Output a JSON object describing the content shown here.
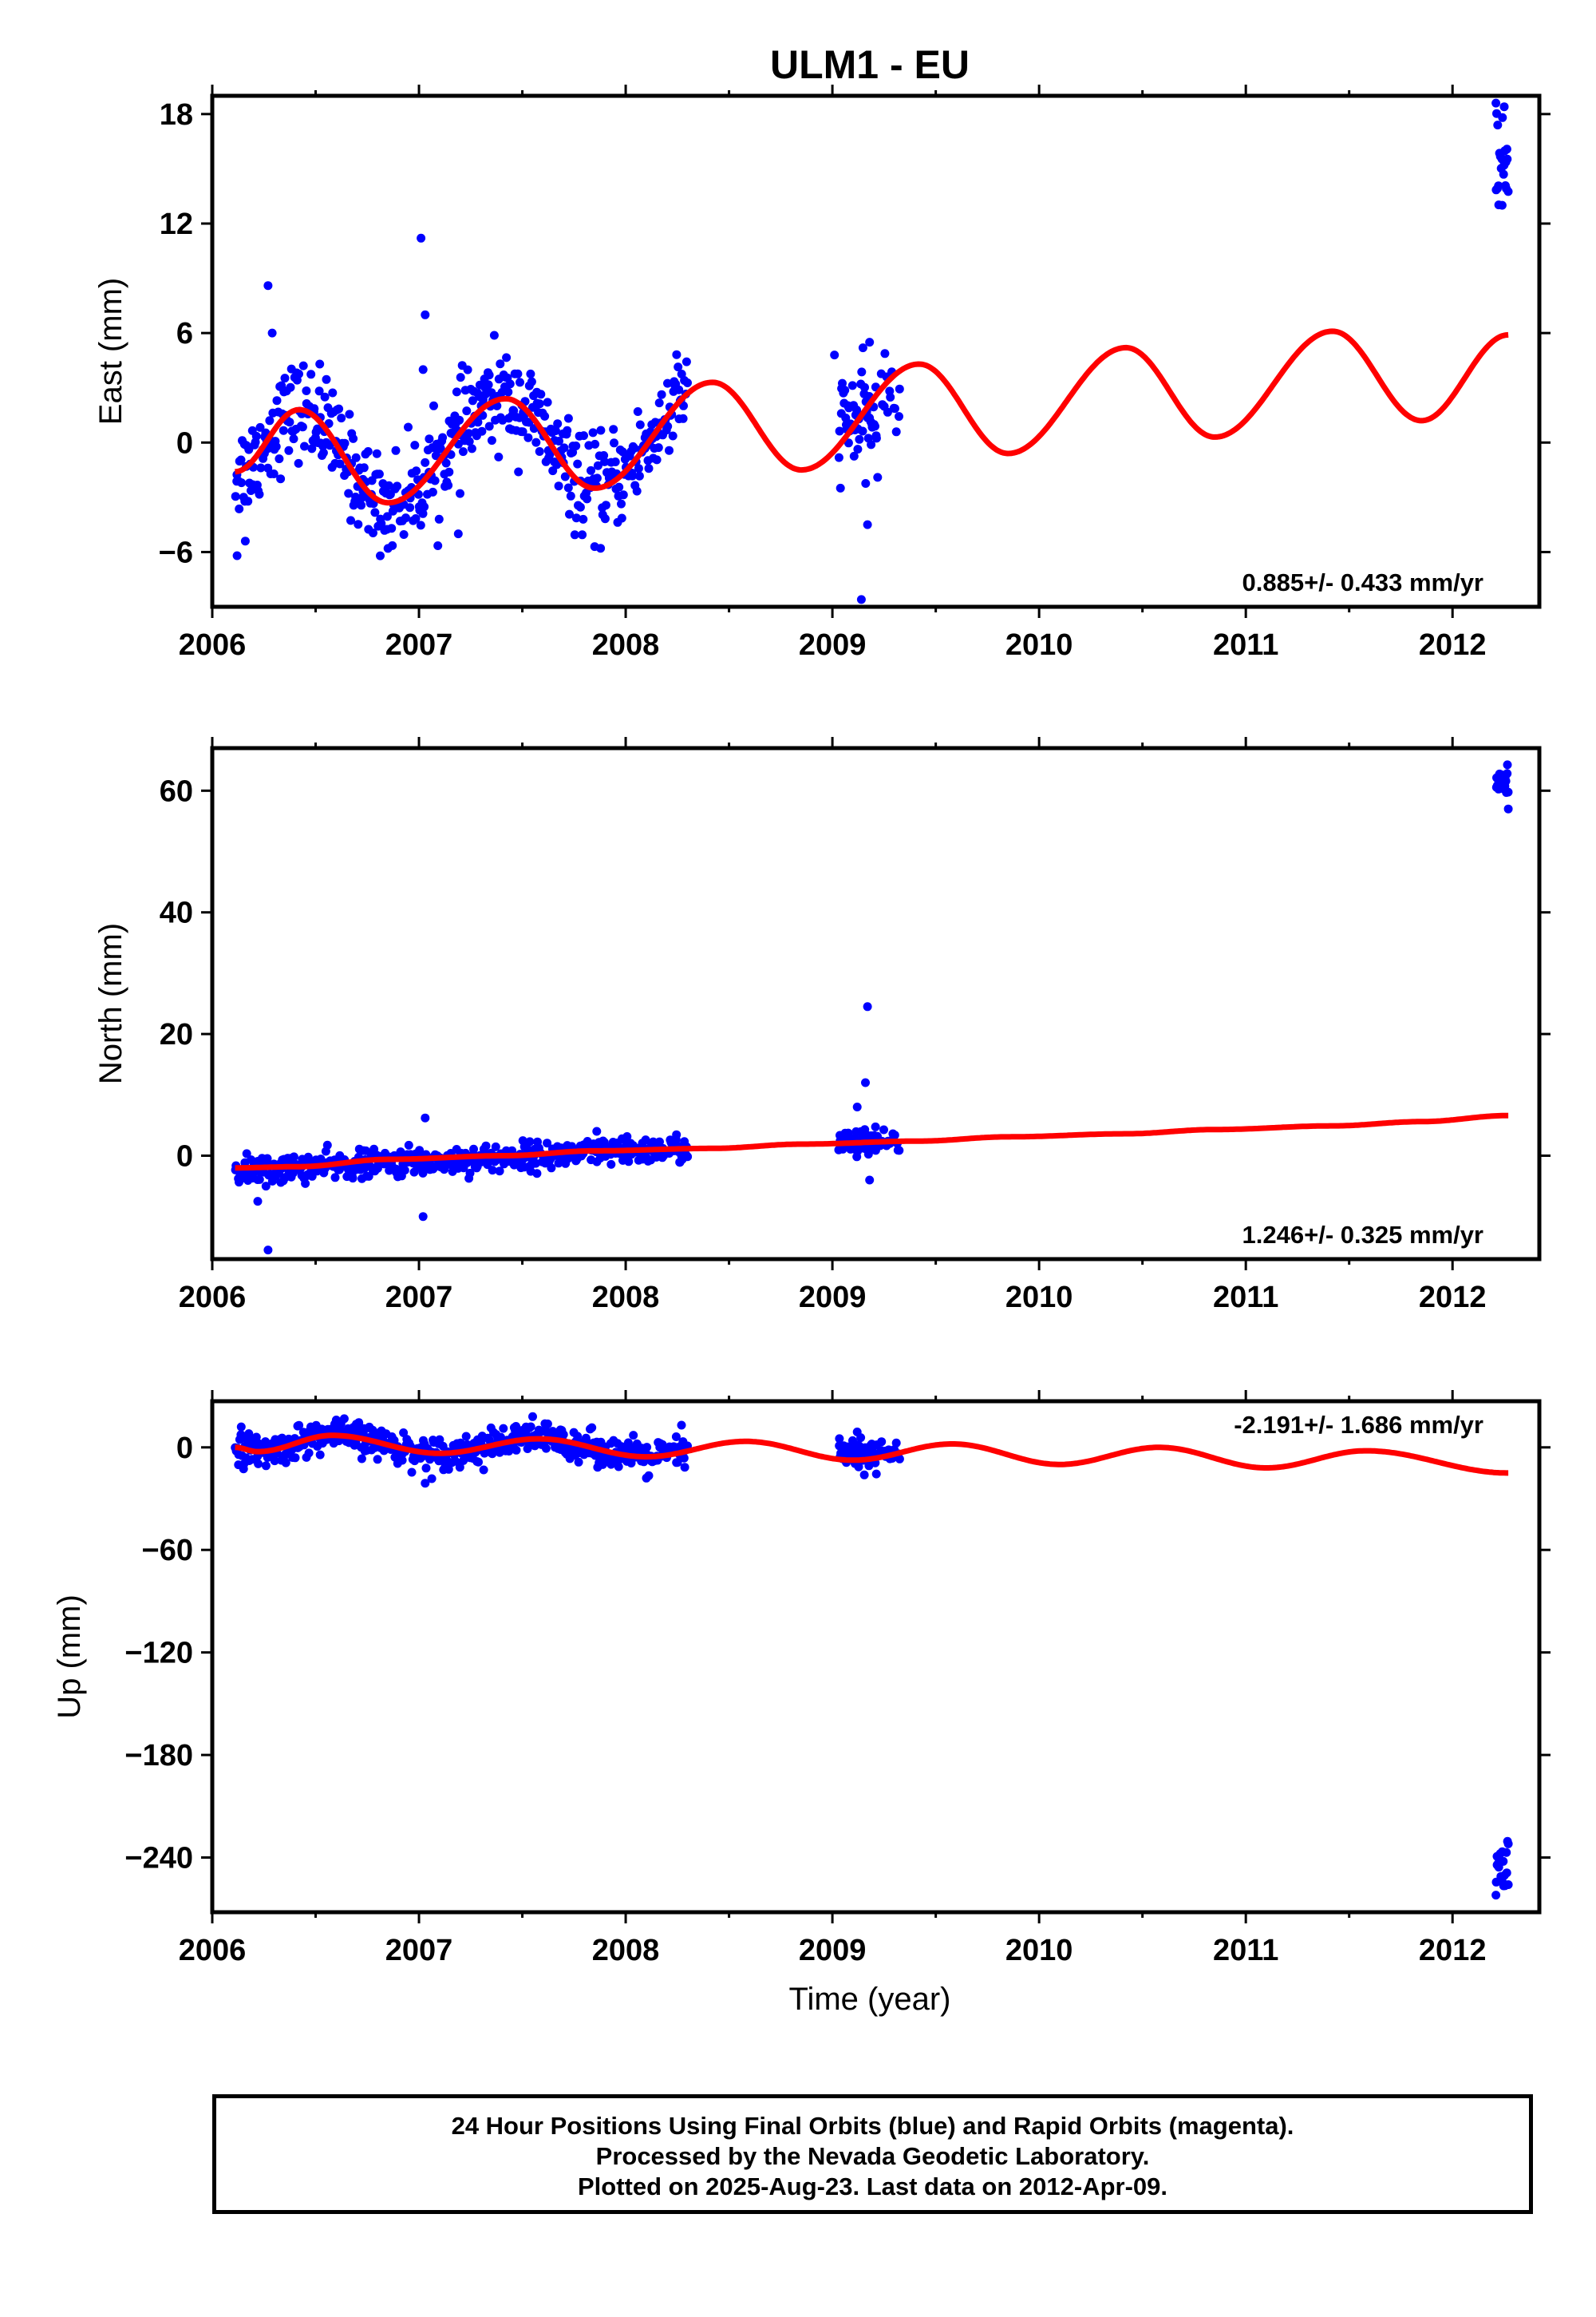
{
  "title": "ULM1 - EU",
  "xlabel": "Time (year)",
  "footer": {
    "line1": "24 Hour Positions Using Final Orbits (blue) and Rapid Orbits (magenta).",
    "line2": "Processed by the Nevada Geodetic Laboratory.",
    "line3": "Plotted on 2025-Aug-23. Last data on 2012-Apr-09."
  },
  "colors": {
    "points": "#0000ff",
    "fit": "#ff0000",
    "frame": "#000000"
  },
  "chart_data": [
    {
      "type": "scatter",
      "panel": "East",
      "ylabel": "East (mm)",
      "xlim": [
        2006.0,
        2012.42
      ],
      "ylim": [
        -9,
        19
      ],
      "xticks": [
        2006,
        2007,
        2008,
        2009,
        2010,
        2011,
        2012
      ],
      "yticks": [
        18,
        12,
        6,
        0,
        -6
      ],
      "ytick_labels": [
        "18",
        "12",
        "6",
        "0",
        "−6"
      ],
      "rate_label": "0.885+/- 0.433 mm/yr",
      "rate_position": "bottom-right",
      "series": [
        {
          "name": "",
          "kind": "points",
          "clusters": [
            {
              "x": [
                2006.11,
                2008.3
              ],
              "model": "seasonal",
              "scatter": 1.3,
              "n": 520
            },
            {
              "x": [
                2009.03,
                2009.22
              ],
              "model": "flat",
              "level": 1.2,
              "scatter": 1.3,
              "n": 55
            },
            {
              "x": [
                2009.23,
                2009.33
              ],
              "model": "flat",
              "level": 2.5,
              "scatter": 1.0,
              "n": 14
            },
            {
              "x": [
                2012.21,
                2012.27
              ],
              "model": "flat",
              "level": 15.5,
              "scatter": 1.6,
              "n": 22
            }
          ],
          "outliers": [
            [
              2006.12,
              -6.2
            ],
            [
              2006.16,
              -5.4
            ],
            [
              2006.27,
              8.6
            ],
            [
              2006.29,
              6.0
            ],
            [
              2006.52,
              4.3
            ],
            [
              2006.85,
              -5.8
            ],
            [
              2007.01,
              11.2
            ],
            [
              2007.03,
              7.0
            ],
            [
              2007.02,
              4.0
            ],
            [
              2007.19,
              -5.0
            ],
            [
              2007.34,
              3.7
            ],
            [
              2007.85,
              -5.7
            ],
            [
              2009.01,
              4.8
            ],
            [
              2009.14,
              -8.6
            ],
            [
              2009.18,
              5.5
            ],
            [
              2009.17,
              -4.5
            ],
            [
              2012.21,
              18.6
            ],
            [
              2012.25,
              18.4
            ],
            [
              2012.24,
              13.0
            ]
          ]
        },
        {
          "name": "",
          "kind": "fit",
          "model": "seasonal-trend",
          "x_range": [
            2006.11,
            2012.27
          ],
          "rate": 0.885,
          "anchor": [
            [
              2006.11,
              -1.6
            ],
            [
              2006.42,
              1.8
            ],
            [
              2006.85,
              -3.3
            ],
            [
              2007.42,
              2.4
            ],
            [
              2007.85,
              -2.5
            ],
            [
              2008.42,
              3.3
            ],
            [
              2008.85,
              -1.5
            ],
            [
              2009.42,
              4.3
            ],
            [
              2009.85,
              -0.6
            ],
            [
              2010.42,
              5.2
            ],
            [
              2010.85,
              0.3
            ],
            [
              2011.42,
              6.1
            ],
            [
              2011.85,
              1.2
            ],
            [
              2012.27,
              5.9
            ]
          ]
        }
      ]
    },
    {
      "type": "scatter",
      "panel": "North",
      "ylabel": "North (mm)",
      "xlim": [
        2006.0,
        2012.42
      ],
      "ylim": [
        -17,
        67
      ],
      "xticks": [
        2006,
        2007,
        2008,
        2009,
        2010,
        2011,
        2012
      ],
      "yticks": [
        60,
        40,
        20,
        0
      ],
      "ytick_labels": [
        "60",
        "40",
        "20",
        "0"
      ],
      "rate_label": "1.246+/- 0.325 mm/yr",
      "rate_position": "bottom-right",
      "series": [
        {
          "name": "",
          "kind": "points",
          "clusters": [
            {
              "x": [
                2006.11,
                2008.3
              ],
              "model": "trend",
              "start": -2.5,
              "end": 1.2,
              "scatter": 1.1,
              "n": 520
            },
            {
              "x": [
                2009.03,
                2009.22
              ],
              "model": "flat",
              "level": 2.0,
              "scatter": 1.2,
              "n": 55
            },
            {
              "x": [
                2009.23,
                2009.33
              ],
              "model": "flat",
              "level": 2.0,
              "scatter": 1.0,
              "n": 14
            },
            {
              "x": [
                2012.21,
                2012.27
              ],
              "model": "flat",
              "level": 62.0,
              "scatter": 1.4,
              "n": 22
            }
          ],
          "outliers": [
            [
              2006.27,
              -15.5
            ],
            [
              2006.22,
              -7.5
            ],
            [
              2006.26,
              -5.0
            ],
            [
              2007.02,
              -10.0
            ],
            [
              2007.03,
              6.2
            ],
            [
              2007.86,
              4.0
            ],
            [
              2009.12,
              8.0
            ],
            [
              2009.16,
              12.0
            ],
            [
              2009.17,
              24.5
            ],
            [
              2009.18,
              -4.0
            ],
            [
              2012.27,
              57.0
            ]
          ]
        },
        {
          "name": "",
          "kind": "fit",
          "model": "seasonal-trend",
          "x_range": [
            2006.11,
            2012.27
          ],
          "rate": 1.246,
          "anchor": [
            [
              2006.11,
              -2.0
            ],
            [
              2006.42,
              -1.8
            ],
            [
              2006.85,
              -0.6
            ],
            [
              2007.42,
              0.0
            ],
            [
              2007.85,
              0.8
            ],
            [
              2008.42,
              1.2
            ],
            [
              2008.85,
              1.9
            ],
            [
              2009.42,
              2.4
            ],
            [
              2009.85,
              3.1
            ],
            [
              2010.42,
              3.6
            ],
            [
              2010.85,
              4.3
            ],
            [
              2011.42,
              4.9
            ],
            [
              2011.85,
              5.6
            ],
            [
              2012.27,
              6.6
            ]
          ]
        }
      ]
    },
    {
      "type": "scatter",
      "panel": "Up",
      "ylabel": "Up (mm)",
      "xlim": [
        2006.0,
        2012.42
      ],
      "ylim": [
        -272,
        27
      ],
      "xticks": [
        2006,
        2007,
        2008,
        2009,
        2010,
        2011,
        2012
      ],
      "yticks": [
        0,
        -60,
        -120,
        -180,
        -240
      ],
      "ytick_labels": [
        "0",
        "−60",
        "−120",
        "−180",
        "−240"
      ],
      "rate_label": "-2.191+/- 1.686 mm/yr",
      "rate_position": "top-right",
      "series": [
        {
          "name": "",
          "kind": "points",
          "clusters": [
            {
              "x": [
                2006.11,
                2008.3
              ],
              "model": "seasonal",
              "scatter": 4.5,
              "n": 520
            },
            {
              "x": [
                2009.03,
                2009.22
              ],
              "model": "flat",
              "level": -4.0,
              "scatter": 5.0,
              "n": 55
            },
            {
              "x": [
                2009.23,
                2009.33
              ],
              "model": "flat",
              "level": -2.0,
              "scatter": 4.0,
              "n": 14
            },
            {
              "x": [
                2012.21,
                2012.27
              ],
              "model": "flat",
              "level": -248.0,
              "scatter": 7.0,
              "n": 22
            }
          ],
          "outliers": [
            [
              2006.14,
              12.0
            ],
            [
              2006.6,
              16.0
            ],
            [
              2007.03,
              -21.0
            ],
            [
              2007.55,
              18.0
            ],
            [
              2008.1,
              -18.0
            ],
            [
              2008.27,
              13.0
            ],
            [
              2009.12,
              9.0
            ],
            [
              2012.21,
              -262.0
            ],
            [
              2012.27,
              -232.0
            ]
          ]
        },
        {
          "name": "",
          "kind": "fit",
          "model": "seasonal-trend",
          "x_range": [
            2006.11,
            2012.27
          ],
          "rate": -2.191,
          "anchor": [
            [
              2006.11,
              0.0
            ],
            [
              2006.22,
              -2.5
            ],
            [
              2006.58,
              7.0
            ],
            [
              2007.1,
              -3.5
            ],
            [
              2007.58,
              5.0
            ],
            [
              2008.1,
              -5.5
            ],
            [
              2008.58,
              3.5
            ],
            [
              2009.1,
              -7.5
            ],
            [
              2009.58,
              2.0
            ],
            [
              2010.1,
              -10.0
            ],
            [
              2010.58,
              0.0
            ],
            [
              2011.1,
              -12.0
            ],
            [
              2011.58,
              -2.0
            ],
            [
              2012.27,
              -15.0
            ]
          ]
        }
      ]
    }
  ]
}
